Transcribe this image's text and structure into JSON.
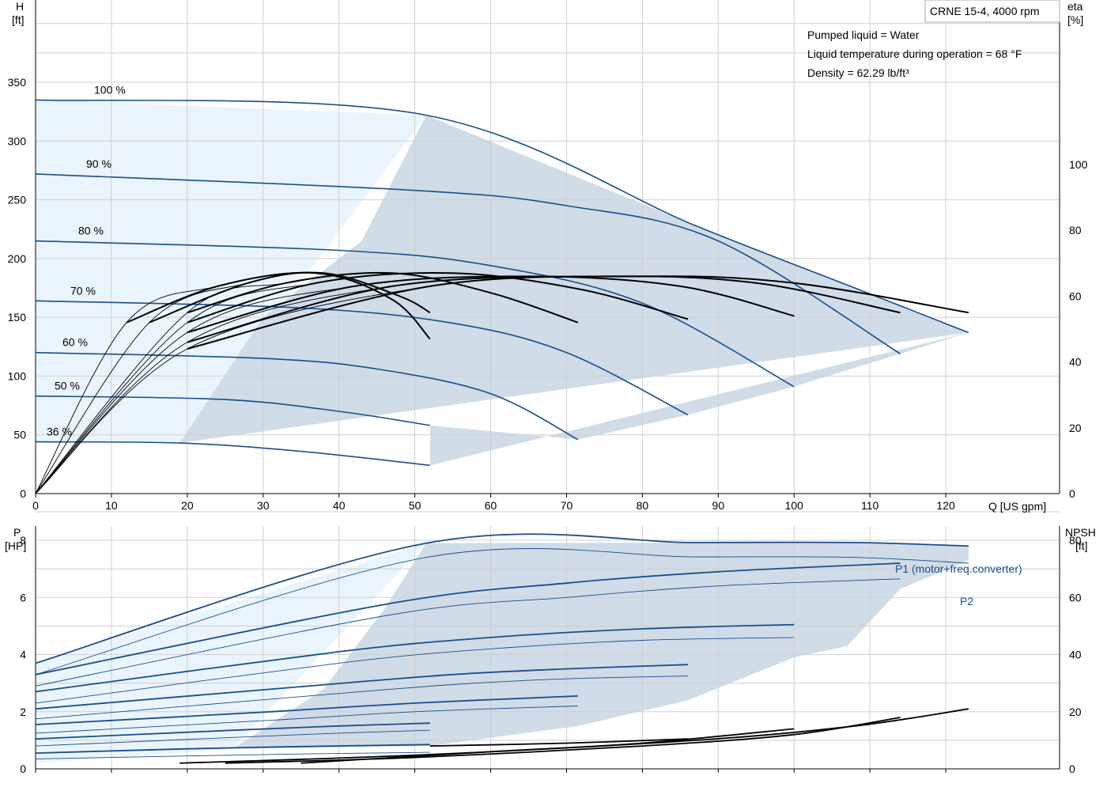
{
  "title_box": "CRNE 15-4, 4000 rpm",
  "info_lines": [
    "Pumped liquid = Water",
    "Liquid temperature during operation = 68 °F",
    "Density = 62.29 lb/ft³"
  ],
  "colors": {
    "curve": "#1a4e8c",
    "eff": "#000000",
    "fill_dark": "#d0dce8",
    "fill_light": "#eaf4fc",
    "grid": "#cfcfcf"
  },
  "chart_data": [
    {
      "type": "line",
      "name": "head-efficiency",
      "y_axis_label": [
        "H",
        "[ft]"
      ],
      "y2_axis_label": [
        "eta",
        "[%]"
      ],
      "x_axis_label": "Q [US gpm]",
      "xlim": [
        0,
        135
      ],
      "ylim": [
        0,
        420
      ],
      "y2lim": [
        0,
        150
      ],
      "x_ticks": [
        0,
        10,
        20,
        30,
        40,
        50,
        60,
        70,
        80,
        90,
        100,
        110,
        120
      ],
      "y_ticks": [
        0,
        50,
        100,
        150,
        200,
        250,
        300,
        350
      ],
      "y2_ticks": [
        0,
        20,
        40,
        60,
        80,
        100
      ],
      "grid": true,
      "speed_labels": [
        "100 %",
        "90 %",
        "80 %",
        "70 %",
        "60 %",
        "50 %",
        "36 %"
      ],
      "head_curves": [
        {
          "name": "100 %",
          "qmax": 123,
          "points": [
            [
              0,
              335
            ],
            [
              51.5,
              322
            ],
            [
              87,
              228
            ],
            [
              108,
              175
            ],
            [
              123,
              137
            ]
          ]
        },
        {
          "name": "90 %",
          "qmax": 114,
          "points": [
            [
              0,
              272
            ],
            [
              50,
              258
            ],
            [
              70,
              245
            ],
            [
              90,
              215
            ],
            [
              114,
              119
            ]
          ]
        },
        {
          "name": "80 %",
          "qmax": 100,
          "points": [
            [
              0,
              215
            ],
            [
              40,
              207
            ],
            [
              60,
              194
            ],
            [
              80,
              162
            ],
            [
              100,
              91
            ]
          ]
        },
        {
          "name": "70 %",
          "qmax": 86,
          "points": [
            [
              0,
              164
            ],
            [
              35,
              158
            ],
            [
              55,
              145
            ],
            [
              70,
              120
            ],
            [
              86,
              67
            ]
          ]
        },
        {
          "name": "60 %",
          "qmax": 71.5,
          "points": [
            [
              0,
              120
            ],
            [
              30,
              115
            ],
            [
              45,
              106
            ],
            [
              60,
              85
            ],
            [
              71.5,
              46
            ]
          ]
        },
        {
          "name": "50 %",
          "qmax": 52,
          "points": [
            [
              0,
              83
            ],
            [
              25,
              80
            ],
            [
              40,
              70
            ],
            [
              52,
              58
            ]
          ]
        },
        {
          "name": "36 %",
          "qmax": 52,
          "points": [
            [
              0,
              44
            ],
            [
              19,
              43
            ],
            [
              35,
              36
            ],
            [
              52,
              24
            ]
          ]
        }
      ],
      "eta_curves": [
        {
          "name": "100 %",
          "qmax": 123,
          "points": [
            [
              0,
              0
            ],
            [
              20,
              44
            ],
            [
              52,
              63
            ],
            [
              80,
              66
            ],
            [
              100,
              64
            ],
            [
              123,
              55
            ]
          ]
        },
        {
          "name": "90 %",
          "qmax": 114,
          "points": [
            [
              0,
              0
            ],
            [
              20,
              46
            ],
            [
              47,
              63
            ],
            [
              75,
              66
            ],
            [
              95,
              64
            ],
            [
              114,
              55
            ]
          ]
        },
        {
          "name": "80 %",
          "qmax": 100,
          "points": [
            [
              0,
              0
            ],
            [
              20,
              49
            ],
            [
              42,
              63
            ],
            [
              65,
              66
            ],
            [
              85,
              63
            ],
            [
              100,
              54
            ]
          ]
        },
        {
          "name": "70 %",
          "qmax": 86,
          "points": [
            [
              0,
              0
            ],
            [
              20,
              52
            ],
            [
              37,
              64
            ],
            [
              55,
              67
            ],
            [
              72,
              62
            ],
            [
              86,
              53
            ]
          ]
        },
        {
          "name": "60 %",
          "qmax": 71.5,
          "points": [
            [
              0,
              0
            ],
            [
              20,
              55
            ],
            [
              33,
              64
            ],
            [
              47,
              67
            ],
            [
              60,
              61
            ],
            [
              71.5,
              52
            ]
          ]
        },
        {
          "name": "50 %",
          "qmax": 52,
          "points": [
            [
              0,
              0
            ],
            [
              15,
              52
            ],
            [
              28,
              64
            ],
            [
              38,
              67
            ],
            [
              48,
              60
            ],
            [
              52,
              55
            ]
          ]
        },
        {
          "name": "36 %",
          "qmax": 52,
          "points": [
            [
              0,
              0
            ],
            [
              12,
              52
            ],
            [
              24,
              63
            ],
            [
              37,
              67
            ],
            [
              47,
              59
            ],
            [
              52,
              47
            ]
          ]
        }
      ]
    },
    {
      "type": "line",
      "name": "power-npsh",
      "y_axis_label": [
        "P",
        "[HP]"
      ],
      "y2_axis_label": [
        "NPSH",
        "[ft]"
      ],
      "xlim": [
        0,
        135
      ],
      "ylim": [
        0,
        8.5
      ],
      "y2lim": [
        0,
        85
      ],
      "y_ticks": [
        0,
        2,
        4,
        6,
        8
      ],
      "y2_ticks": [
        0,
        20,
        40,
        60,
        80
      ],
      "grid": true,
      "series_labels": [
        "P1 (motor+freq.converter)",
        "P2"
      ],
      "p1_curves": [
        {
          "name": "100 %",
          "qmax": 123,
          "points": [
            [
              0,
              3.7
            ],
            [
              51.5,
              7.9
            ],
            [
              87,
              7.92
            ],
            [
              108,
              7.92
            ],
            [
              123,
              7.8
            ]
          ]
        },
        {
          "name": "90 %",
          "qmax": 114,
          "points": [
            [
              0,
              3.3
            ],
            [
              47,
              5.8
            ],
            [
              70,
              6.5
            ],
            [
              90,
              6.9
            ],
            [
              114,
              7.2
            ]
          ]
        },
        {
          "name": "80 %",
          "qmax": 100,
          "points": [
            [
              0,
              2.7
            ],
            [
              40,
              4.1
            ],
            [
              60,
              4.6
            ],
            [
              80,
              4.9
            ],
            [
              100,
              5.05
            ]
          ]
        },
        {
          "name": "70 %",
          "qmax": 86,
          "points": [
            [
              0,
              2.1
            ],
            [
              36,
              2.9
            ],
            [
              55,
              3.3
            ],
            [
              70,
              3.5
            ],
            [
              86,
              3.65
            ]
          ]
        },
        {
          "name": "60 %",
          "qmax": 71.5,
          "points": [
            [
              0,
              1.55
            ],
            [
              31,
              2.0
            ],
            [
              50,
              2.3
            ],
            [
              71.5,
              2.55
            ]
          ]
        },
        {
          "name": "50 %",
          "qmax": 52,
          "points": [
            [
              0,
              1.05
            ],
            [
              26,
              1.35
            ],
            [
              40,
              1.5
            ],
            [
              52,
              1.6
            ]
          ]
        },
        {
          "name": "36 %",
          "qmax": 52,
          "points": [
            [
              0,
              0.55
            ],
            [
              20,
              0.7
            ],
            [
              35,
              0.78
            ],
            [
              52,
              0.85
            ]
          ]
        }
      ],
      "p2_curves": [
        {
          "name": "100 %",
          "qmax": 123,
          "points": [
            [
              0,
              3.3
            ],
            [
              51.5,
              7.4
            ],
            [
              87,
              7.42
            ],
            [
              108,
              7.4
            ],
            [
              123,
              7.2
            ]
          ]
        },
        {
          "name": "90 %",
          "qmax": 114,
          "points": [
            [
              0,
              2.9
            ],
            [
              47,
              5.4
            ],
            [
              70,
              6.0
            ],
            [
              90,
              6.4
            ],
            [
              114,
              6.65
            ]
          ]
        },
        {
          "name": "80 %",
          "qmax": 100,
          "points": [
            [
              0,
              2.3
            ],
            [
              40,
              3.7
            ],
            [
              60,
              4.2
            ],
            [
              80,
              4.5
            ],
            [
              100,
              4.6
            ]
          ]
        },
        {
          "name": "70 %",
          "qmax": 86,
          "points": [
            [
              0,
              1.75
            ],
            [
              36,
              2.55
            ],
            [
              55,
              2.95
            ],
            [
              70,
              3.15
            ],
            [
              86,
              3.25
            ]
          ]
        },
        {
          "name": "60 %",
          "qmax": 71.5,
          "points": [
            [
              0,
              1.25
            ],
            [
              31,
              1.7
            ],
            [
              50,
              2.0
            ],
            [
              71.5,
              2.2
            ]
          ]
        },
        {
          "name": "50 %",
          "qmax": 52,
          "points": [
            [
              0,
              0.8
            ],
            [
              26,
              1.1
            ],
            [
              40,
              1.25
            ],
            [
              52,
              1.35
            ]
          ]
        },
        {
          "name": "36 %",
          "qmax": 52,
          "points": [
            [
              0,
              0.35
            ],
            [
              20,
              0.45
            ],
            [
              35,
              0.52
            ],
            [
              52,
              0.58
            ]
          ]
        }
      ],
      "npsh_curves": [
        {
          "name": "100 %",
          "qstart": 19,
          "qmax": 123,
          "points": [
            [
              19,
              2
            ],
            [
              52,
              5
            ],
            [
              87,
              10
            ],
            [
              108,
              15
            ],
            [
              123,
              21
            ]
          ]
        },
        {
          "name": "90 %",
          "qstart": 25,
          "qmax": 114,
          "points": [
            [
              25,
              2
            ],
            [
              50,
              4
            ],
            [
              80,
              8
            ],
            [
              100,
              12
            ],
            [
              114,
              18
            ]
          ]
        },
        {
          "name": "80 %",
          "qstart": 35,
          "qmax": 100,
          "points": [
            [
              35,
              2
            ],
            [
              60,
              6
            ],
            [
              80,
              9
            ],
            [
              100,
              14
            ]
          ]
        },
        {
          "name": "70 %",
          "qstart": 52,
          "qmax": 86,
          "points": [
            [
              52,
              8
            ],
            [
              70,
              9
            ],
            [
              86,
              10.5
            ]
          ]
        }
      ]
    }
  ]
}
